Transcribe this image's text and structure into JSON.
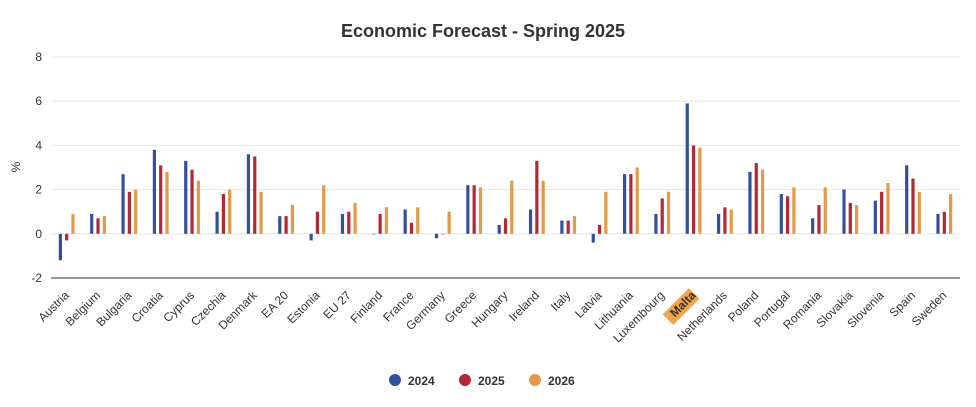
{
  "chart_data": {
    "type": "bar",
    "title": "Economic Forecast - Spring 2025",
    "ylabel": "%",
    "xlabel": "",
    "ylim": [
      -2,
      8
    ],
    "yticks": [
      8,
      6,
      4,
      2,
      0,
      -2
    ],
    "grid": true,
    "legend_position": "bottom-center",
    "highlighted_category": "Malta",
    "highlight_color": "#f2a44b",
    "categories": [
      "Austria",
      "Belgium",
      "Bulgaria",
      "Croatia",
      "Cyprus",
      "Czechia",
      "Denmark",
      "EA 20",
      "Estonia",
      "EU 27",
      "Finland",
      "France",
      "Germany",
      "Greece",
      "Hungary",
      "Ireland",
      "Italy",
      "Latvia",
      "Lithuania",
      "Luxembourg",
      "Malta",
      "Netherlands",
      "Poland",
      "Portugal",
      "Romania",
      "Slovakia",
      "Slovenia",
      "Spain",
      "Sweden"
    ],
    "series": [
      {
        "name": "2024",
        "color": "#33509b",
        "values": [
          -1.2,
          0.9,
          2.7,
          3.8,
          3.3,
          1.0,
          3.6,
          0.8,
          -0.3,
          0.9,
          0.0,
          1.1,
          -0.2,
          2.2,
          0.4,
          1.1,
          0.6,
          -0.4,
          2.7,
          0.9,
          5.9,
          0.9,
          2.8,
          1.8,
          0.7,
          2.0,
          1.5,
          3.1,
          0.9
        ]
      },
      {
        "name": "2025",
        "color": "#b52734",
        "values": [
          -0.3,
          0.7,
          1.9,
          3.1,
          2.9,
          1.8,
          3.5,
          0.8,
          1.0,
          1.0,
          0.9,
          0.5,
          0.0,
          2.2,
          0.7,
          3.3,
          0.6,
          0.4,
          2.7,
          1.6,
          4.0,
          1.2,
          3.2,
          1.7,
          1.3,
          1.4,
          1.9,
          2.5,
          1.0
        ]
      },
      {
        "name": "2026",
        "color": "#e29a48",
        "values": [
          0.9,
          0.8,
          2.0,
          2.8,
          2.4,
          2.0,
          1.9,
          1.3,
          2.2,
          1.4,
          1.2,
          1.2,
          1.0,
          2.1,
          2.4,
          2.4,
          0.8,
          1.9,
          3.0,
          1.9,
          3.9,
          1.1,
          2.9,
          2.1,
          2.1,
          1.3,
          2.3,
          1.9,
          1.8
        ]
      }
    ]
  }
}
